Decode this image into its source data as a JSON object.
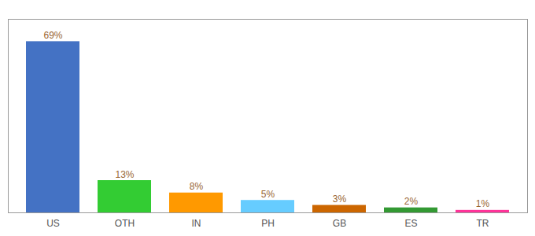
{
  "chart_data": {
    "type": "bar",
    "categories": [
      "US",
      "OTH",
      "IN",
      "PH",
      "GB",
      "ES",
      "TR"
    ],
    "values": [
      69,
      13,
      8,
      5,
      3,
      2,
      1
    ],
    "value_labels": [
      "69%",
      "13%",
      "8%",
      "5%",
      "3%",
      "2%",
      "1%"
    ],
    "colors": [
      "#4472C4",
      "#33CC33",
      "#FF9900",
      "#66CCFF",
      "#CC6600",
      "#339933",
      "#FF3399"
    ],
    "ylim": [
      0,
      78
    ],
    "grid": false,
    "data_labels": true,
    "tick_labels": "x"
  }
}
